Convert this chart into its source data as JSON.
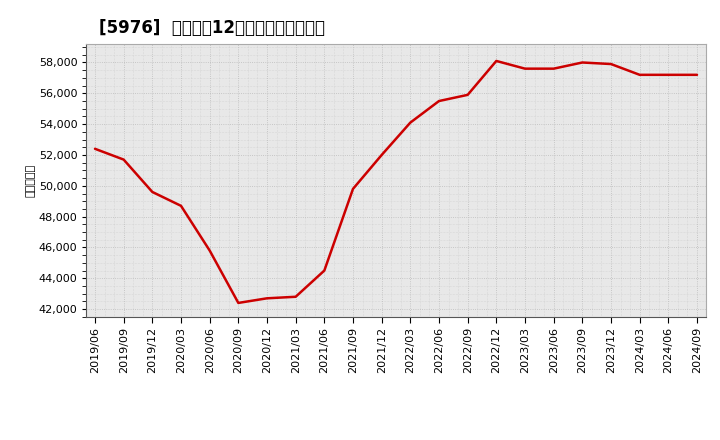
{
  "title": "[5976]  売上高の12か月移動合計の推移",
  "ylabel": "（百万円）",
  "line_color": "#cc0000",
  "bg_color": "#ffffff",
  "plot_bg_color": "#e8e8e8",
  "grid_color": "#bbbbbb",
  "dates": [
    "2019/06",
    "2019/09",
    "2019/12",
    "2020/03",
    "2020/06",
    "2020/09",
    "2020/12",
    "2021/03",
    "2021/06",
    "2021/09",
    "2021/12",
    "2022/03",
    "2022/06",
    "2022/09",
    "2022/12",
    "2023/03",
    "2023/06",
    "2023/09",
    "2023/12",
    "2024/03",
    "2024/06",
    "2024/09"
  ],
  "values": [
    52400,
    51700,
    49600,
    48700,
    45800,
    42400,
    42700,
    42800,
    44500,
    49800,
    52000,
    54100,
    55500,
    55900,
    58100,
    57600,
    57600,
    58000,
    57900,
    57200,
    57200,
    57200
  ],
  "yticks": [
    42000,
    44000,
    46000,
    48000,
    50000,
    52000,
    54000,
    56000,
    58000
  ],
  "ylim": [
    41500,
    59200
  ],
  "title_fontsize": 12,
  "axis_fontsize": 8,
  "ylabel_fontsize": 8
}
